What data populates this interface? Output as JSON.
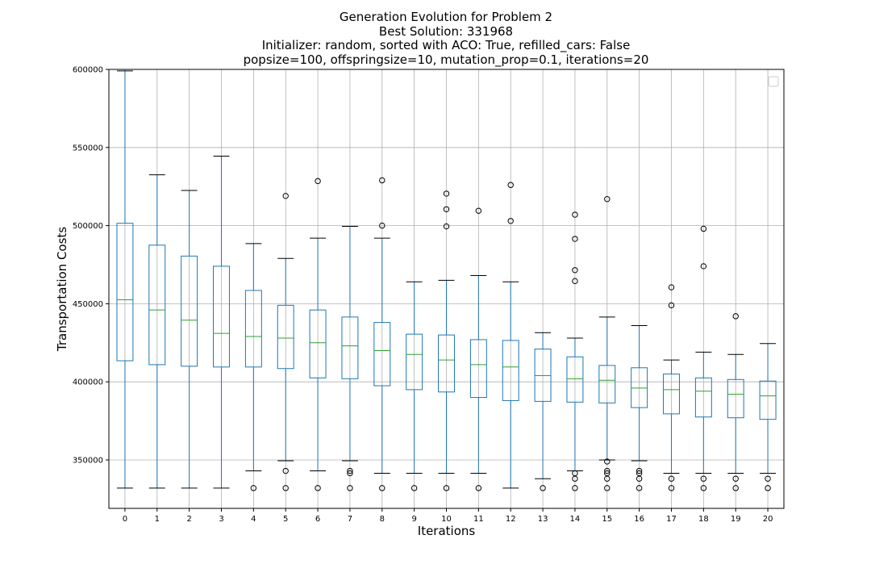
{
  "chart_data": {
    "type": "box",
    "title": [
      "Generation Evolution for Problem 2",
      "Best Solution: 331968",
      "Initializer: random, sorted with ACO: True, refilled_cars: False",
      "popsize=100, offspringsize=10, mutation_prop=0.1, iterations=20"
    ],
    "xlabel": "Iterations",
    "ylabel": "Transportation Costs",
    "ylim": [
      319000,
      600000
    ],
    "y_ticks": [
      350000,
      400000,
      450000,
      500000,
      550000,
      600000
    ],
    "y_tick_labels": [
      "350000",
      "400000",
      "450000",
      "500000",
      "550000",
      "600000"
    ],
    "grid": true,
    "legend": "empty box, top-right",
    "colors": {
      "box": "#1f77b4",
      "median": "#2ca02c",
      "grid": "#b0b0b0"
    },
    "categories": [
      "0",
      "1",
      "2",
      "3",
      "4",
      "5",
      "6",
      "7",
      "8",
      "9",
      "10",
      "11",
      "12",
      "13",
      "14",
      "15",
      "16",
      "17",
      "18",
      "19",
      "20"
    ],
    "boxes": [
      {
        "x": "0",
        "whislo": 332000,
        "q1": 413500,
        "med": 452500,
        "q3": 501500,
        "whishi": 599000,
        "fliers": []
      },
      {
        "x": "1",
        "whislo": 332000,
        "q1": 411000,
        "med": 446000,
        "q3": 487500,
        "whishi": 532500,
        "fliers": []
      },
      {
        "x": "2",
        "whislo": 332000,
        "q1": 410000,
        "med": 439500,
        "q3": 480500,
        "whishi": 522500,
        "fliers": []
      },
      {
        "x": "3",
        "whislo": 332000,
        "q1": 409500,
        "med": 431000,
        "q3": 474000,
        "whishi": 544500,
        "fliers": []
      },
      {
        "x": "4",
        "whislo": 343000,
        "q1": 409500,
        "med": 429000,
        "q3": 458500,
        "whishi": 488500,
        "fliers": [
          332000
        ]
      },
      {
        "x": "5",
        "whislo": 349500,
        "q1": 408500,
        "med": 428000,
        "q3": 449000,
        "whishi": 479000,
        "fliers": [
          332000,
          343000,
          519000
        ]
      },
      {
        "x": "6",
        "whislo": 343000,
        "q1": 402500,
        "med": 425000,
        "q3": 446000,
        "whishi": 492000,
        "fliers": [
          332000,
          528500
        ]
      },
      {
        "x": "7",
        "whislo": 349500,
        "q1": 402000,
        "med": 423000,
        "q3": 441500,
        "whishi": 499500,
        "fliers": [
          332000,
          341500,
          343000
        ]
      },
      {
        "x": "8",
        "whislo": 341500,
        "q1": 397500,
        "med": 420000,
        "q3": 438000,
        "whishi": 492000,
        "fliers": [
          332000,
          500000,
          529000
        ]
      },
      {
        "x": "9",
        "whislo": 341500,
        "q1": 395000,
        "med": 417500,
        "q3": 430500,
        "whishi": 464000,
        "fliers": [
          332000
        ]
      },
      {
        "x": "10",
        "whislo": 341500,
        "q1": 393500,
        "med": 414000,
        "q3": 430000,
        "whishi": 465000,
        "fliers": [
          332000,
          499500,
          510500,
          520500
        ]
      },
      {
        "x": "11",
        "whislo": 341500,
        "q1": 390000,
        "med": 411000,
        "q3": 427000,
        "whishi": 468000,
        "fliers": [
          332000,
          509500
        ]
      },
      {
        "x": "12",
        "whislo": 332000,
        "q1": 388000,
        "med": 409500,
        "q3": 426500,
        "whishi": 464000,
        "fliers": [
          503000,
          526000
        ]
      },
      {
        "x": "13",
        "whislo": 338000,
        "q1": 387500,
        "med": 404000,
        "q3": 421000,
        "whishi": 431500,
        "fliers": [
          332000
        ]
      },
      {
        "x": "14",
        "whislo": 343000,
        "q1": 387000,
        "med": 402000,
        "q3": 416000,
        "whishi": 428000,
        "fliers": [
          332000,
          338000,
          341500,
          464500,
          471500,
          491500,
          507000
        ]
      },
      {
        "x": "15",
        "whislo": 350000,
        "q1": 386500,
        "med": 401000,
        "q3": 410500,
        "whishi": 441500,
        "fliers": [
          332000,
          338000,
          341500,
          343000,
          349000,
          517000
        ]
      },
      {
        "x": "16",
        "whislo": 349500,
        "q1": 383500,
        "med": 396000,
        "q3": 409000,
        "whishi": 436000,
        "fliers": [
          332000,
          338000,
          341500,
          343000
        ]
      },
      {
        "x": "17",
        "whislo": 341500,
        "q1": 379500,
        "med": 395000,
        "q3": 405000,
        "whishi": 414000,
        "fliers": [
          332000,
          338000,
          449000,
          460500
        ]
      },
      {
        "x": "18",
        "whislo": 341500,
        "q1": 377500,
        "med": 394000,
        "q3": 402500,
        "whishi": 419000,
        "fliers": [
          332000,
          338000,
          474000,
          498000
        ]
      },
      {
        "x": "19",
        "whislo": 341500,
        "q1": 377000,
        "med": 392000,
        "q3": 401500,
        "whishi": 417500,
        "fliers": [
          332000,
          338000,
          442000
        ]
      },
      {
        "x": "20",
        "whislo": 341500,
        "q1": 376000,
        "med": 391000,
        "q3": 400500,
        "whishi": 424500,
        "fliers": [
          332000,
          338000
        ]
      }
    ]
  }
}
